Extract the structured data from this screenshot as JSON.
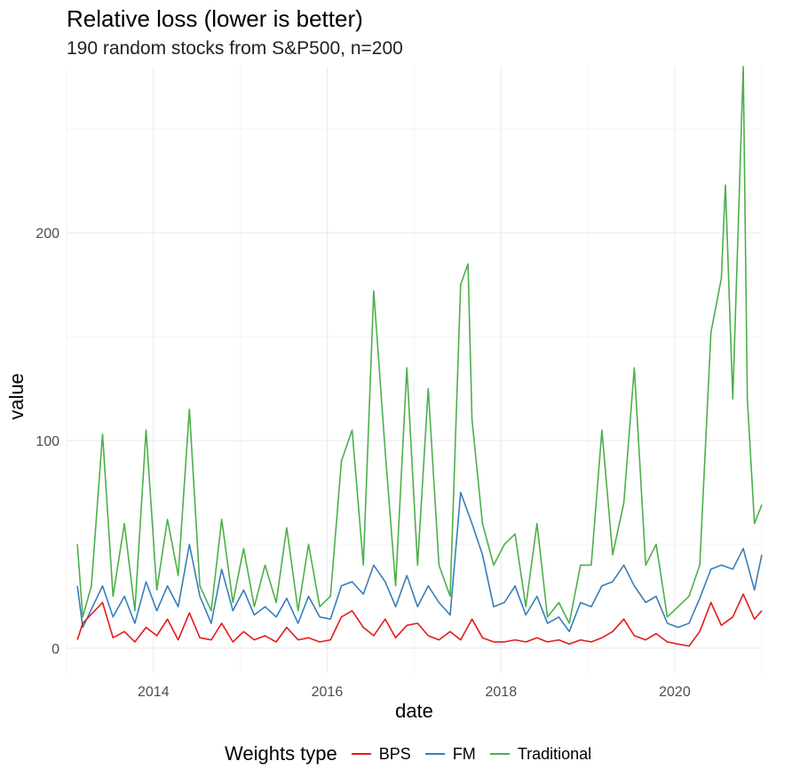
{
  "chart_data": {
    "type": "line",
    "title": "Relative loss (lower is better)",
    "subtitle": "190 random stocks from S&P500, n=200",
    "xlabel": "date",
    "ylabel": "value",
    "xlim": [
      "2013-01-01",
      "2021-01-01"
    ],
    "ylim": [
      -12,
      280
    ],
    "x_ticks": [
      "2014",
      "2016",
      "2018",
      "2020"
    ],
    "x_tick_dates": [
      "2014-01-01",
      "2016-01-01",
      "2018-01-01",
      "2020-01-01"
    ],
    "y_ticks": [
      0,
      100,
      200
    ],
    "grid": true,
    "legend": {
      "title": "Weights type",
      "position": "bottom",
      "entries": [
        "BPS",
        "FM",
        "Traditional"
      ]
    },
    "series": [
      {
        "name": "BPS",
        "color": "#E41A1C",
        "x": [
          "2013-02-15",
          "2013-03-10",
          "2013-06-01",
          "2013-07-15",
          "2013-09-01",
          "2013-10-15",
          "2013-12-01",
          "2014-01-15",
          "2014-03-01",
          "2014-04-15",
          "2014-06-01",
          "2014-07-15",
          "2014-09-01",
          "2014-10-15",
          "2014-12-01",
          "2015-01-15",
          "2015-03-01",
          "2015-04-15",
          "2015-06-01",
          "2015-07-15",
          "2015-09-01",
          "2015-10-15",
          "2015-12-01",
          "2016-01-15",
          "2016-03-01",
          "2016-04-15",
          "2016-06-01",
          "2016-07-15",
          "2016-09-01",
          "2016-10-15",
          "2016-12-01",
          "2017-01-15",
          "2017-03-01",
          "2017-04-15",
          "2017-06-01",
          "2017-07-15",
          "2017-09-01",
          "2017-10-15",
          "2017-12-01",
          "2018-01-15",
          "2018-03-01",
          "2018-04-15",
          "2018-06-01",
          "2018-07-15",
          "2018-09-01",
          "2018-10-15",
          "2018-12-01",
          "2019-01-15",
          "2019-03-01",
          "2019-04-15",
          "2019-06-01",
          "2019-07-15",
          "2019-09-01",
          "2019-10-15",
          "2019-12-01",
          "2020-01-15",
          "2020-03-01",
          "2020-04-15",
          "2020-06-01",
          "2020-07-15",
          "2020-09-01",
          "2020-10-15",
          "2020-12-01",
          "2021-01-01"
        ],
        "values": [
          4,
          12,
          22,
          5,
          8,
          3,
          10,
          6,
          14,
          4,
          17,
          5,
          4,
          12,
          3,
          8,
          4,
          6,
          3,
          10,
          4,
          5,
          3,
          4,
          15,
          18,
          10,
          6,
          14,
          5,
          11,
          12,
          6,
          4,
          8,
          4,
          14,
          5,
          3,
          3,
          4,
          3,
          5,
          3,
          4,
          2,
          4,
          3,
          5,
          8,
          14,
          6,
          4,
          7,
          3,
          2,
          1,
          8,
          22,
          11,
          15,
          26,
          14,
          18
        ]
      },
      {
        "name": "FM",
        "color": "#377EB8",
        "x": [
          "2013-02-15",
          "2013-03-10",
          "2013-06-01",
          "2013-07-15",
          "2013-09-01",
          "2013-10-15",
          "2013-12-01",
          "2014-01-15",
          "2014-03-01",
          "2014-04-15",
          "2014-06-01",
          "2014-07-15",
          "2014-09-01",
          "2014-10-15",
          "2014-12-01",
          "2015-01-15",
          "2015-03-01",
          "2015-04-15",
          "2015-06-01",
          "2015-07-15",
          "2015-09-01",
          "2015-10-15",
          "2015-12-01",
          "2016-01-15",
          "2016-03-01",
          "2016-04-15",
          "2016-06-01",
          "2016-07-15",
          "2016-09-01",
          "2016-10-15",
          "2016-12-01",
          "2017-01-15",
          "2017-03-01",
          "2017-04-15",
          "2017-06-01",
          "2017-07-15",
          "2017-09-01",
          "2017-10-15",
          "2017-12-01",
          "2018-01-15",
          "2018-03-01",
          "2018-04-15",
          "2018-06-01",
          "2018-07-15",
          "2018-09-01",
          "2018-10-15",
          "2018-12-01",
          "2019-01-15",
          "2019-03-01",
          "2019-04-15",
          "2019-06-01",
          "2019-07-15",
          "2019-09-01",
          "2019-10-15",
          "2019-12-01",
          "2020-01-15",
          "2020-03-01",
          "2020-04-15",
          "2020-06-01",
          "2020-07-15",
          "2020-09-01",
          "2020-10-15",
          "2020-12-01",
          "2021-01-01"
        ],
        "values": [
          30,
          10,
          30,
          15,
          25,
          12,
          32,
          18,
          30,
          20,
          50,
          25,
          12,
          38,
          18,
          28,
          16,
          20,
          15,
          24,
          12,
          25,
          15,
          14,
          30,
          32,
          26,
          40,
          32,
          20,
          35,
          20,
          30,
          22,
          16,
          75,
          60,
          45,
          20,
          22,
          30,
          16,
          25,
          12,
          15,
          8,
          22,
          20,
          30,
          32,
          40,
          30,
          22,
          25,
          12,
          10,
          12,
          24,
          38,
          40,
          38,
          48,
          28,
          45
        ]
      },
      {
        "name": "Traditional",
        "color": "#4DAF4A",
        "x": [
          "2013-02-15",
          "2013-03-10",
          "2013-04-15",
          "2013-06-01",
          "2013-07-15",
          "2013-09-01",
          "2013-10-15",
          "2013-12-01",
          "2014-01-15",
          "2014-03-01",
          "2014-04-15",
          "2014-06-01",
          "2014-07-15",
          "2014-09-01",
          "2014-10-15",
          "2014-12-01",
          "2015-01-15",
          "2015-03-01",
          "2015-04-15",
          "2015-06-01",
          "2015-07-15",
          "2015-09-01",
          "2015-10-15",
          "2015-12-01",
          "2016-01-15",
          "2016-03-01",
          "2016-04-15",
          "2016-06-01",
          "2016-07-15",
          "2016-09-01",
          "2016-10-15",
          "2016-12-01",
          "2017-01-15",
          "2017-03-01",
          "2017-04-15",
          "2017-06-01",
          "2017-07-15",
          "2017-08-15",
          "2017-09-01",
          "2017-10-15",
          "2017-12-01",
          "2018-01-15",
          "2018-03-01",
          "2018-04-15",
          "2018-06-01",
          "2018-07-15",
          "2018-09-01",
          "2018-10-15",
          "2018-12-01",
          "2019-01-15",
          "2019-03-01",
          "2019-04-15",
          "2019-06-01",
          "2019-07-15",
          "2019-09-01",
          "2019-10-15",
          "2019-12-01",
          "2020-01-15",
          "2020-03-01",
          "2020-04-15",
          "2020-06-01",
          "2020-07-15",
          "2020-08-01",
          "2020-09-01",
          "2020-10-15",
          "2020-11-01",
          "2020-12-01",
          "2021-01-01"
        ],
        "values": [
          50,
          15,
          30,
          103,
          25,
          60,
          18,
          105,
          28,
          62,
          35,
          115,
          30,
          18,
          62,
          22,
          48,
          20,
          40,
          22,
          58,
          18,
          50,
          20,
          25,
          90,
          105,
          40,
          172,
          95,
          30,
          135,
          40,
          125,
          40,
          25,
          175,
          185,
          110,
          60,
          40,
          50,
          55,
          20,
          60,
          15,
          22,
          12,
          40,
          40,
          105,
          45,
          70,
          135,
          40,
          50,
          15,
          20,
          25,
          40,
          152,
          178,
          223,
          120,
          280,
          120,
          60,
          69
        ]
      }
    ]
  }
}
